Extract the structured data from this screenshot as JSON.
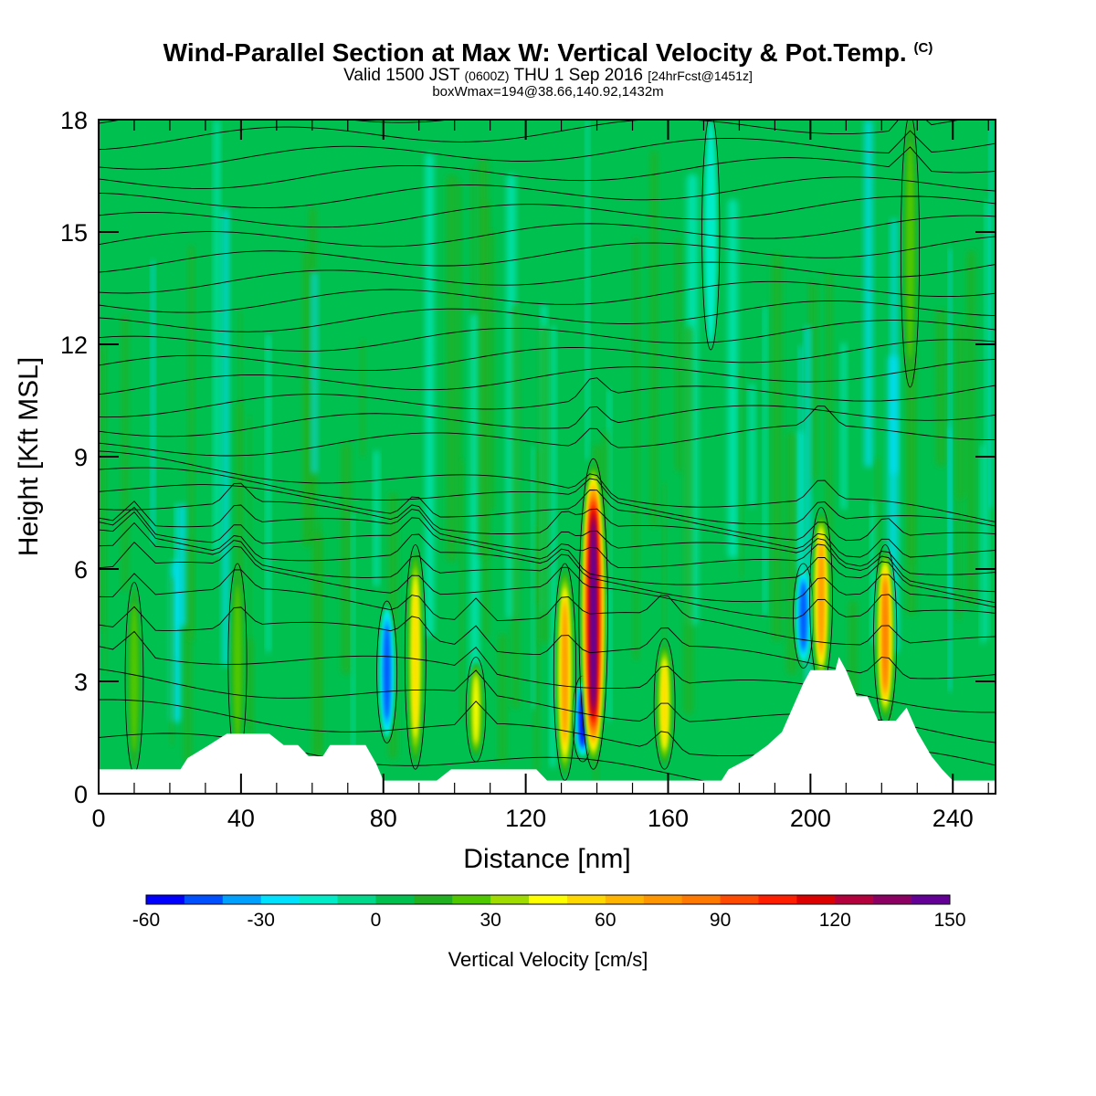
{
  "title": {
    "main": "Wind-Parallel Section at Max W: Vertical Velocity & Pot.Temp.",
    "copyright": "(C)",
    "line2_a": "Valid 1500 JST",
    "line2_b": "(0600Z)",
    "line2_c": "THU 1 Sep 2016",
    "line2_d": "[24hrFcst@1451z]",
    "line3": "boxWmax=194@38.66,140.92,1432m"
  },
  "chart_data": {
    "type": "heatmap",
    "title": "Wind-Parallel Section at Max W: Vertical Velocity & Pot.Temp.",
    "xlabel": "Distance [nm]",
    "ylabel": "Height [Kft MSL]",
    "xlim": [
      0,
      252
    ],
    "ylim": [
      0,
      18
    ],
    "x_ticks": [
      0,
      40,
      80,
      120,
      160,
      200,
      240
    ],
    "y_ticks": [
      0,
      3,
      6,
      9,
      12,
      15,
      18
    ],
    "background_value_cm_s": 0,
    "updrafts": [
      {
        "x": 10,
        "z_bottom": 0.7,
        "z_top": 5.5,
        "w": 20
      },
      {
        "x": 39,
        "z_bottom": 1.0,
        "z_top": 6.0,
        "w": 25
      },
      {
        "x": 89,
        "z_bottom": 0.8,
        "z_top": 6.5,
        "w": 55
      },
      {
        "x": 106,
        "z_bottom": 1.0,
        "z_top": 3.5,
        "w": 40
      },
      {
        "x": 131,
        "z_bottom": 0.5,
        "z_top": 6.0,
        "w": 70
      },
      {
        "x": 139,
        "z_bottom": 0.8,
        "z_top": 8.8,
        "w": 150
      },
      {
        "x": 159,
        "z_bottom": 0.8,
        "z_top": 4.0,
        "w": 55
      },
      {
        "x": 203,
        "z_bottom": 3.0,
        "z_top": 7.5,
        "w": 75
      },
      {
        "x": 221,
        "z_bottom": 2.0,
        "z_top": 6.5,
        "w": 80
      },
      {
        "x": 228,
        "z_bottom": 11.0,
        "z_top": 18.0,
        "w": 25
      }
    ],
    "downdrafts": [
      {
        "x": 81,
        "z_bottom": 1.5,
        "z_top": 5.0,
        "w": -45
      },
      {
        "x": 136,
        "z_bottom": 1.0,
        "z_top": 3.0,
        "w": -50
      },
      {
        "x": 198,
        "z_bottom": 3.5,
        "z_top": 6.0,
        "w": -45
      },
      {
        "x": 172,
        "z_bottom": 12.0,
        "z_top": 18.0,
        "w": -15
      }
    ],
    "terrain_kft": [
      {
        "x": 0,
        "z": 0.65
      },
      {
        "x": 23,
        "z": 0.65
      },
      {
        "x": 25,
        "z": 0.95
      },
      {
        "x": 31,
        "z": 1.3
      },
      {
        "x": 36,
        "z": 1.6
      },
      {
        "x": 48,
        "z": 1.6
      },
      {
        "x": 52,
        "z": 1.3
      },
      {
        "x": 56,
        "z": 1.3
      },
      {
        "x": 59,
        "z": 1.0
      },
      {
        "x": 63,
        "z": 1.0
      },
      {
        "x": 65,
        "z": 1.3
      },
      {
        "x": 75,
        "z": 1.3
      },
      {
        "x": 78,
        "z": 0.8
      },
      {
        "x": 80,
        "z": 0.35
      },
      {
        "x": 95,
        "z": 0.35
      },
      {
        "x": 99,
        "z": 0.65
      },
      {
        "x": 123,
        "z": 0.65
      },
      {
        "x": 126,
        "z": 0.35
      },
      {
        "x": 175,
        "z": 0.35
      },
      {
        "x": 177,
        "z": 0.65
      },
      {
        "x": 183,
        "z": 0.95
      },
      {
        "x": 188,
        "z": 1.3
      },
      {
        "x": 192,
        "z": 1.65
      },
      {
        "x": 195,
        "z": 2.3
      },
      {
        "x": 198,
        "z": 2.95
      },
      {
        "x": 200,
        "z": 3.3
      },
      {
        "x": 207,
        "z": 3.3
      },
      {
        "x": 208,
        "z": 3.65
      },
      {
        "x": 210,
        "z": 3.3
      },
      {
        "x": 213,
        "z": 2.6
      },
      {
        "x": 216,
        "z": 2.6
      },
      {
        "x": 219,
        "z": 1.95
      },
      {
        "x": 224,
        "z": 1.95
      },
      {
        "x": 227,
        "z": 2.3
      },
      {
        "x": 230,
        "z": 1.65
      },
      {
        "x": 234,
        "z": 1.0
      },
      {
        "x": 237,
        "z": 0.65
      },
      {
        "x": 240,
        "z": 0.35
      },
      {
        "x": 252,
        "z": 0.35
      }
    ],
    "colorbar": {
      "label": "Vertical Velocity [cm/s]",
      "ticks": [
        "-60",
        "-30",
        "0",
        "30",
        "60",
        "90",
        "120",
        "150"
      ],
      "levels": [
        -60,
        -50,
        -40,
        -30,
        -20,
        -10,
        0,
        10,
        20,
        30,
        40,
        50,
        60,
        70,
        80,
        90,
        100,
        110,
        120,
        130,
        140,
        150
      ],
      "colors": [
        "#0000ff",
        "#0050ff",
        "#00a0ff",
        "#00e0ff",
        "#00ecc8",
        "#00d88c",
        "#00c050",
        "#20b020",
        "#50c800",
        "#a0dc00",
        "#ffff00",
        "#ffd800",
        "#ffb400",
        "#ff9600",
        "#ff7800",
        "#ff4a00",
        "#ff1e00",
        "#dc0000",
        "#b4003c",
        "#8c0064",
        "#640096"
      ]
    }
  }
}
